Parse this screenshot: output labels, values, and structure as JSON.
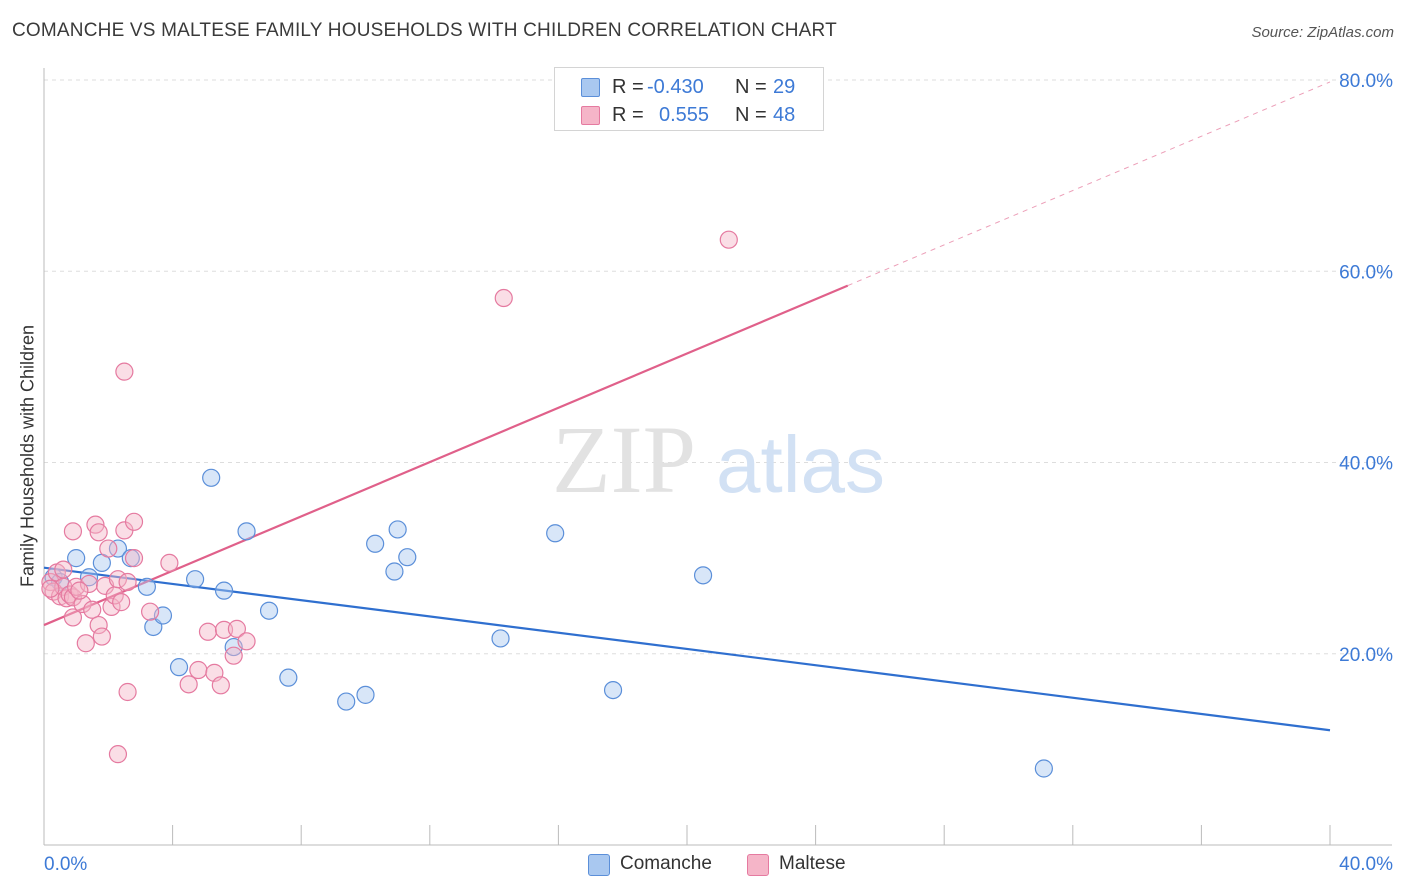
{
  "title": "COMANCHE VS MALTESE FAMILY HOUSEHOLDS WITH CHILDREN CORRELATION CHART",
  "source": "Source: ZipAtlas.com",
  "watermark": {
    "zip": "ZIP",
    "atlas": "atlas"
  },
  "legend": {
    "rows": [
      {
        "r_label": "R =",
        "r_value": "-0.430",
        "n_label": "N =",
        "n_value": "29",
        "color": "#a9c8f0"
      },
      {
        "r_label": "R =",
        "r_value": "0.555",
        "n_label": "N =",
        "n_value": "48",
        "color": "#f5b5c8"
      }
    ]
  },
  "chart_data": {
    "type": "scatter",
    "title": "COMANCHE VS MALTESE FAMILY HOUSEHOLDS WITH CHILDREN CORRELATION CHART",
    "xlabel": "",
    "ylabel": "Family Households with Children",
    "xlim": [
      0,
      40
    ],
    "ylim": [
      0,
      80
    ],
    "x_tick_labels": [
      "0.0%",
      "40.0%"
    ],
    "y_tick_labels": [
      "20.0%",
      "40.0%",
      "60.0%",
      "80.0%"
    ],
    "y_tick_values": [
      20,
      40,
      60,
      80
    ],
    "series": [
      {
        "name": "Comanche",
        "color": "#5b8fd9",
        "fill": "#a9c8f0",
        "line_color": "#2f6fcf",
        "trend": {
          "x0": 0,
          "y0": 29.0,
          "x1": 40,
          "y1": 12.0,
          "dashed_to": 40
        },
        "points": [
          [
            0.3,
            28.0
          ],
          [
            0.5,
            27.5
          ],
          [
            1.0,
            30.0
          ],
          [
            1.4,
            28.0
          ],
          [
            1.8,
            29.5
          ],
          [
            2.3,
            31.0
          ],
          [
            2.7,
            30.0
          ],
          [
            3.2,
            27.0
          ],
          [
            3.4,
            22.8
          ],
          [
            3.7,
            24.0
          ],
          [
            4.2,
            18.6
          ],
          [
            4.7,
            27.8
          ],
          [
            5.2,
            38.4
          ],
          [
            5.6,
            26.6
          ],
          [
            5.9,
            20.7
          ],
          [
            6.3,
            32.8
          ],
          [
            7.0,
            24.5
          ],
          [
            7.6,
            17.5
          ],
          [
            9.4,
            15.0
          ],
          [
            10.0,
            15.7
          ],
          [
            10.3,
            31.5
          ],
          [
            10.9,
            28.6
          ],
          [
            11.0,
            33.0
          ],
          [
            11.3,
            30.1
          ],
          [
            14.2,
            21.6
          ],
          [
            15.9,
            32.6
          ],
          [
            17.7,
            16.2
          ],
          [
            20.5,
            28.2
          ],
          [
            31.1,
            8.0
          ]
        ]
      },
      {
        "name": "Maltese",
        "color": "#e57aa0",
        "fill": "#f5b5c8",
        "line_color": "#e0608a",
        "trend": {
          "x0": 0,
          "y0": 23.0,
          "x1": 25,
          "y1": 58.5,
          "dashed_to": 40
        },
        "points": [
          [
            0.2,
            27.5
          ],
          [
            0.3,
            26.5
          ],
          [
            0.4,
            28.5
          ],
          [
            0.5,
            26.0
          ],
          [
            0.6,
            27.0
          ],
          [
            0.7,
            25.8
          ],
          [
            0.8,
            26.2
          ],
          [
            0.9,
            25.9
          ],
          [
            0.9,
            32.8
          ],
          [
            0.9,
            23.8
          ],
          [
            1.0,
            27.0
          ],
          [
            1.2,
            25.2
          ],
          [
            1.3,
            21.1
          ],
          [
            1.4,
            27.3
          ],
          [
            1.5,
            24.6
          ],
          [
            1.6,
            33.5
          ],
          [
            1.7,
            32.7
          ],
          [
            1.7,
            23.0
          ],
          [
            1.8,
            21.8
          ],
          [
            1.9,
            27.1
          ],
          [
            2.0,
            31.0
          ],
          [
            2.1,
            24.9
          ],
          [
            2.2,
            26.1
          ],
          [
            2.3,
            27.8
          ],
          [
            2.4,
            25.4
          ],
          [
            2.5,
            32.9
          ],
          [
            2.5,
            49.5
          ],
          [
            2.6,
            16.0
          ],
          [
            2.6,
            27.5
          ],
          [
            2.8,
            33.8
          ],
          [
            2.8,
            30.0
          ],
          [
            2.3,
            9.5
          ],
          [
            3.3,
            24.4
          ],
          [
            3.9,
            29.5
          ],
          [
            4.5,
            16.8
          ],
          [
            4.8,
            18.3
          ],
          [
            5.1,
            22.3
          ],
          [
            5.3,
            18.0
          ],
          [
            5.5,
            16.7
          ],
          [
            5.6,
            22.5
          ],
          [
            5.9,
            19.8
          ],
          [
            6.0,
            22.6
          ],
          [
            6.3,
            21.3
          ],
          [
            14.3,
            57.2
          ],
          [
            21.3,
            63.3
          ],
          [
            0.2,
            26.8
          ],
          [
            1.1,
            26.6
          ],
          [
            0.6,
            28.8
          ]
        ]
      }
    ]
  },
  "bottom_legend": [
    {
      "label": "Comanche",
      "color": "#a9c8f0",
      "border": "#5b8fd9"
    },
    {
      "label": "Maltese",
      "color": "#f5b5c8",
      "border": "#e57aa0"
    }
  ]
}
